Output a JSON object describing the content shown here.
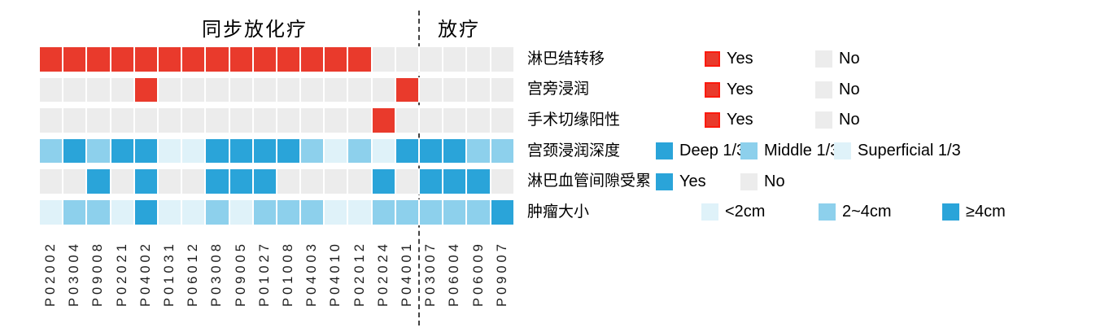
{
  "chart_data": {
    "type": "heatmap",
    "title": "",
    "columns": [
      "P02002",
      "P03004",
      "P09008",
      "P02021",
      "P04002",
      "P01031",
      "P06012",
      "P03008",
      "P09005",
      "P01027",
      "P01008",
      "P04003",
      "P04010",
      "P02012",
      "P02024",
      "P04001",
      "P03007",
      "P06004",
      "P06009",
      "P09007"
    ],
    "column_groups": [
      {
        "label": "同步放化疗",
        "columns": 16
      },
      {
        "label": "放疗",
        "columns": 4
      }
    ],
    "palette": {
      "red": "#E93A2C",
      "gray": "#ECECEC",
      "blue_dark": "#2AA4D9",
      "blue_mid": "#8DD0EC",
      "blue_light": "#DFF2F9"
    },
    "rows": [
      {
        "label": "淋巴结转移",
        "value_colors": {
          "Yes": "red",
          "No": "gray"
        },
        "legend": [
          {
            "label": "Yes",
            "color": "red",
            "bordered": true
          },
          {
            "label": "No",
            "color": "gray",
            "bordered": false
          }
        ],
        "values": [
          "Yes",
          "Yes",
          "Yes",
          "Yes",
          "Yes",
          "Yes",
          "Yes",
          "Yes",
          "Yes",
          "Yes",
          "Yes",
          "Yes",
          "Yes",
          "Yes",
          "No",
          "No",
          "No",
          "No",
          "No",
          "No"
        ]
      },
      {
        "label": "宫旁浸润",
        "value_colors": {
          "Yes": "red",
          "No": "gray"
        },
        "legend": [
          {
            "label": "Yes",
            "color": "red",
            "bordered": true
          },
          {
            "label": "No",
            "color": "gray",
            "bordered": false
          }
        ],
        "values": [
          "No",
          "No",
          "No",
          "No",
          "Yes",
          "No",
          "No",
          "No",
          "No",
          "No",
          "No",
          "No",
          "No",
          "No",
          "No",
          "Yes",
          "No",
          "No",
          "No",
          "No"
        ]
      },
      {
        "label": "手术切缘阳性",
        "value_colors": {
          "Yes": "red",
          "No": "gray"
        },
        "legend": [
          {
            "label": "Yes",
            "color": "red",
            "bordered": true
          },
          {
            "label": "No",
            "color": "gray",
            "bordered": false
          }
        ],
        "values": [
          "No",
          "No",
          "No",
          "No",
          "No",
          "No",
          "No",
          "No",
          "No",
          "No",
          "No",
          "No",
          "No",
          "No",
          "Yes",
          "No",
          "No",
          "No",
          "No",
          "No"
        ]
      },
      {
        "label": "宫颈浸润深度",
        "value_colors": {
          "Deep 1/3": "blue_dark",
          "Middle 1/3": "blue_mid",
          "Superficial 1/3": "blue_light"
        },
        "legend": [
          {
            "label": "Deep 1/3",
            "color": "blue_dark",
            "bordered": false
          },
          {
            "label": "Middle 1/3",
            "color": "blue_mid",
            "bordered": false
          },
          {
            "label": "Superficial 1/3",
            "color": "blue_light",
            "bordered": false
          }
        ],
        "values": [
          "Middle 1/3",
          "Deep 1/3",
          "Middle 1/3",
          "Deep 1/3",
          "Deep 1/3",
          "Superficial 1/3",
          "Superficial 1/3",
          "Deep 1/3",
          "Deep 1/3",
          "Deep 1/3",
          "Deep 1/3",
          "Middle 1/3",
          "Superficial 1/3",
          "Middle 1/3",
          "Superficial 1/3",
          "Deep 1/3",
          "Deep 1/3",
          "Deep 1/3",
          "Middle 1/3",
          "Middle 1/3"
        ]
      },
      {
        "label": "淋巴血管间隙受累",
        "value_colors": {
          "Yes": "blue_dark",
          "No": "gray"
        },
        "legend": [
          {
            "label": "Yes",
            "color": "blue_dark",
            "bordered": false
          },
          {
            "label": "No",
            "color": "gray",
            "bordered": false
          }
        ],
        "values": [
          "No",
          "No",
          "Yes",
          "No",
          "Yes",
          "No",
          "No",
          "Yes",
          "Yes",
          "Yes",
          "No",
          "No",
          "No",
          "No",
          "Yes",
          "No",
          "Yes",
          "Yes",
          "Yes",
          "No"
        ]
      },
      {
        "label": "肿瘤大小",
        "value_colors": {
          "<2cm": "blue_light",
          "2~4cm": "blue_mid",
          "≥4cm": "blue_dark"
        },
        "legend": [
          {
            "label": "<2cm",
            "color": "blue_light",
            "bordered": false
          },
          {
            "label": "2~4cm",
            "color": "blue_mid",
            "bordered": false
          },
          {
            "label": "≥4cm",
            "color": "blue_dark",
            "bordered": false
          }
        ],
        "values": [
          "<2cm",
          "2~4cm",
          "2~4cm",
          "<2cm",
          "≥4cm",
          "<2cm",
          "<2cm",
          "2~4cm",
          "<2cm",
          "2~4cm",
          "2~4cm",
          "2~4cm",
          "<2cm",
          "<2cm",
          "2~4cm",
          "2~4cm",
          "2~4cm",
          "2~4cm",
          "2~4cm",
          "≥4cm"
        ]
      }
    ]
  }
}
